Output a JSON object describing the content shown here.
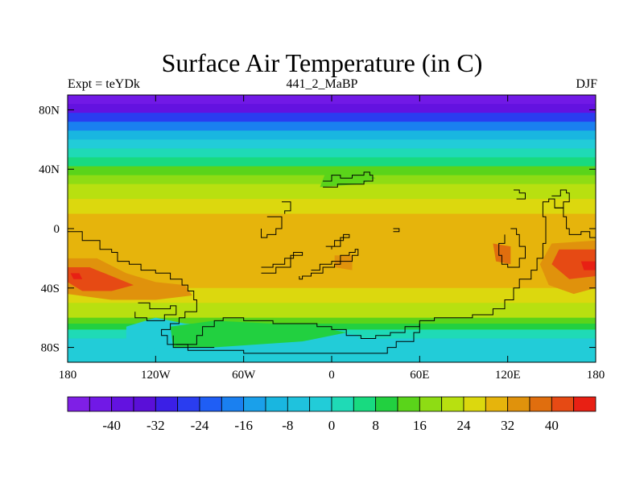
{
  "title": "Surface Air Temperature (in C)",
  "subtitle_left": "Expt = teYDk",
  "subtitle_center": "441_2_MaBP",
  "subtitle_right": "DJF",
  "chart_data": {
    "type": "heatmap",
    "variable": "Surface Air Temperature",
    "units": "C",
    "season": "DJF",
    "x_range": [
      -180,
      180
    ],
    "y_range": [
      -90,
      90
    ],
    "x_ticks": [
      {
        "value": -180,
        "label": "180"
      },
      {
        "value": -120,
        "label": "120W"
      },
      {
        "value": -60,
        "label": "60W"
      },
      {
        "value": 0,
        "label": "0"
      },
      {
        "value": 60,
        "label": "60E"
      },
      {
        "value": 120,
        "label": "120E"
      },
      {
        "value": 180,
        "label": "180"
      }
    ],
    "y_ticks": [
      {
        "value": 80,
        "label": "80N"
      },
      {
        "value": 40,
        "label": "40N"
      },
      {
        "value": 0,
        "label": "0"
      },
      {
        "value": -40,
        "label": "40S"
      },
      {
        "value": -80,
        "label": "80S"
      }
    ],
    "colorbar": {
      "levels": [
        -48,
        -44,
        -40,
        -36,
        -32,
        -28,
        -24,
        -20,
        -16,
        -12,
        -8,
        -4,
        0,
        4,
        8,
        12,
        16,
        20,
        24,
        28,
        32,
        36,
        40,
        44,
        48
      ],
      "labels": [
        -40,
        -32,
        -24,
        -16,
        -8,
        0,
        8,
        16,
        24,
        32,
        40
      ],
      "colors": [
        "#7f1fe6",
        "#7119e6",
        "#6312e0",
        "#5a0fd8",
        "#3b1fe6",
        "#2a3df0",
        "#1f5ef5",
        "#1a80f0",
        "#1aa0ea",
        "#19b6e0",
        "#1fc2dd",
        "#22ccd8",
        "#1fdab6",
        "#18da80",
        "#22d040",
        "#5ad41a",
        "#8edc14",
        "#b8e010",
        "#dcd80e",
        "#e6b40c",
        "#e0920c",
        "#e06e0e",
        "#e64a14",
        "#e82014"
      ]
    },
    "zonal_mean_profile": [
      {
        "lat": 90,
        "value": -42
      },
      {
        "lat": 84,
        "value": -38
      },
      {
        "lat": 78,
        "value": -28
      },
      {
        "lat": 72,
        "value": -18
      },
      {
        "lat": 66,
        "value": -10
      },
      {
        "lat": 60,
        "value": -4
      },
      {
        "lat": 54,
        "value": 2
      },
      {
        "lat": 48,
        "value": 6
      },
      {
        "lat": 42,
        "value": 12
      },
      {
        "lat": 36,
        "value": 17
      },
      {
        "lat": 30,
        "value": 22
      },
      {
        "lat": 20,
        "value": 26
      },
      {
        "lat": 10,
        "value": 29
      },
      {
        "lat": 0,
        "value": 31
      },
      {
        "lat": -10,
        "value": 30
      },
      {
        "lat": -20,
        "value": 30
      },
      {
        "lat": -30,
        "value": 29
      },
      {
        "lat": -40,
        "value": 25
      },
      {
        "lat": -50,
        "value": 20
      },
      {
        "lat": -60,
        "value": 15
      },
      {
        "lat": -64,
        "value": 10
      },
      {
        "lat": -68,
        "value": 0
      },
      {
        "lat": -74,
        "value": -2
      },
      {
        "lat": -82,
        "value": -4
      },
      {
        "lat": -90,
        "value": -6
      }
    ]
  }
}
